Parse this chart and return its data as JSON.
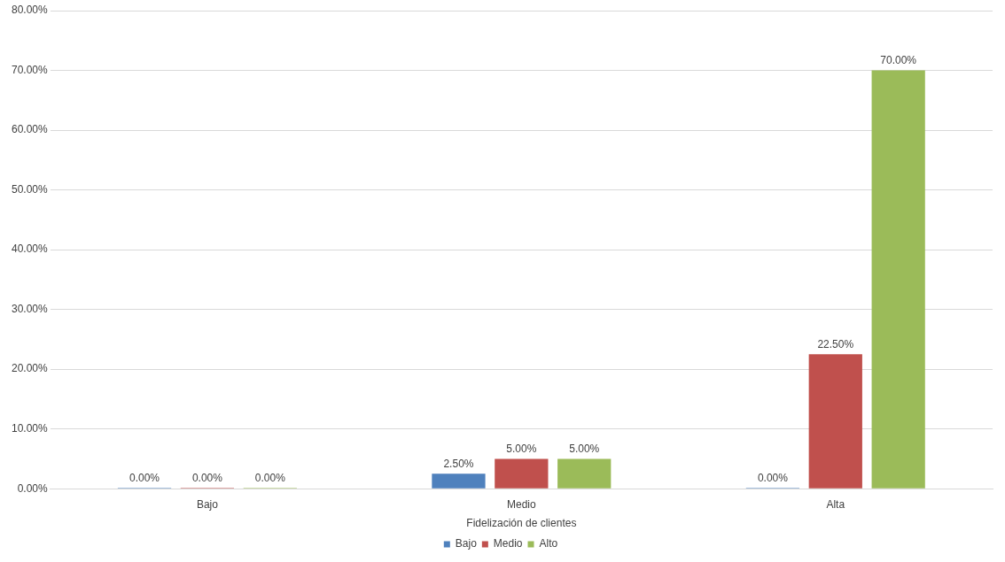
{
  "chart_data": {
    "type": "bar",
    "xlabel": "Fidelización de clientes",
    "categories": [
      "Bajo",
      "Medio",
      "Alta"
    ],
    "series": [
      {
        "name": "Bajo",
        "color": "#4f81bd",
        "values": [
          0,
          2.5,
          0
        ],
        "value_labels": [
          "0.00%",
          "2.50%",
          "0.00%"
        ]
      },
      {
        "name": "Medio",
        "color": "#c0504d",
        "values": [
          0,
          5,
          22.5
        ],
        "value_labels": [
          "0.00%",
          "5.00%",
          "22.50%"
        ]
      },
      {
        "name": "Alto",
        "color": "#9bbb59",
        "values": [
          0,
          5,
          70
        ],
        "value_labels": [
          "0.00%",
          "5.00%",
          "70.00%"
        ]
      }
    ],
    "ylim": [
      0,
      80
    ],
    "yticks": [
      {
        "value": 0,
        "label": "0.00%"
      },
      {
        "value": 10,
        "label": "10.00%"
      },
      {
        "value": 20,
        "label": "20.00%"
      },
      {
        "value": 30,
        "label": "30.00%"
      },
      {
        "value": 40,
        "label": "40.00%"
      },
      {
        "value": 50,
        "label": "50.00%"
      },
      {
        "value": 60,
        "label": "60.00%"
      },
      {
        "value": 70,
        "label": "70.00%"
      },
      {
        "value": 80,
        "label": "80.00%"
      }
    ],
    "grid": "y",
    "legend": "bottom"
  }
}
